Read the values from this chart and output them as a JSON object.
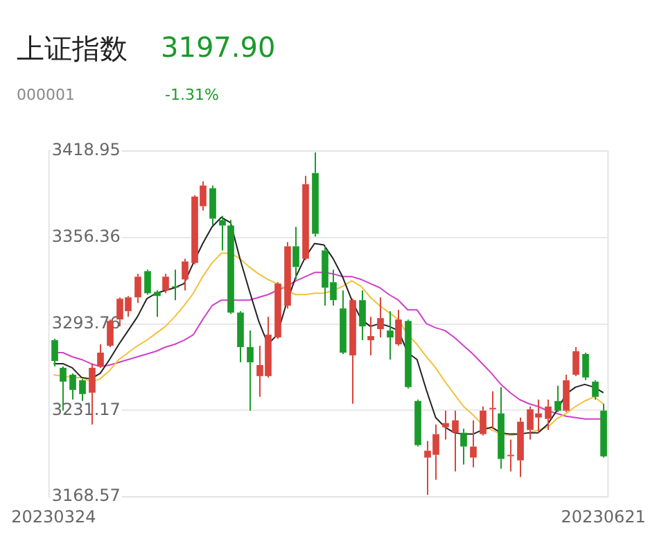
{
  "chart_data": {
    "type": "candlestick",
    "title": "上证指数",
    "subtitle": "000001",
    "annotations": [
      "3197.90",
      "-1.31%"
    ],
    "categories": [
      "20230324",
      null,
      null,
      null,
      null,
      null,
      null,
      null,
      null,
      null,
      null,
      null,
      null,
      null,
      null,
      null,
      null,
      null,
      null,
      null,
      null,
      null,
      null,
      null,
      null,
      null,
      null,
      null,
      null,
      null,
      null,
      null,
      null,
      null,
      null,
      null,
      null,
      null,
      null,
      null,
      null,
      null,
      null,
      null,
      null,
      null,
      null,
      null,
      null,
      null,
      null,
      null,
      null,
      null,
      null,
      null,
      null,
      null,
      null,
      "20230621"
    ],
    "ohlc": [
      [
        3282,
        3283,
        3263,
        3267
      ],
      [
        3262,
        3263,
        3231,
        3252
      ],
      [
        3257,
        3258,
        3239,
        3246
      ],
      [
        3253,
        3254,
        3238,
        3243
      ],
      [
        3244,
        3265,
        3221,
        3262
      ],
      [
        3263,
        3279,
        3262,
        3273
      ],
      [
        3278,
        3297,
        3277,
        3296
      ],
      [
        3297,
        3313,
        3292,
        3312
      ],
      [
        3303,
        3314,
        3299,
        3313
      ],
      [
        3313,
        3330,
        3309,
        3328
      ],
      [
        3332,
        3333,
        3315,
        3316
      ],
      [
        3317,
        3318,
        3299,
        3314
      ],
      [
        3318,
        3330,
        3316,
        3328
      ],
      [
        3321,
        3333,
        3311,
        3320
      ],
      [
        3326,
        3341,
        3318,
        3339
      ],
      [
        3338,
        3387,
        3337,
        3386
      ],
      [
        3379,
        3397,
        3376,
        3394
      ],
      [
        3392,
        3394,
        3365,
        3370
      ],
      [
        3369,
        3372,
        3347,
        3365
      ],
      [
        3365,
        3369,
        3301,
        3302
      ],
      [
        3302,
        3303,
        3266,
        3277
      ],
      [
        3277,
        3289,
        3231,
        3266
      ],
      [
        3256,
        3278,
        3241,
        3264
      ],
      [
        3256,
        3299,
        3255,
        3286
      ],
      [
        3284,
        3324,
        3283,
        3323
      ],
      [
        3307,
        3353,
        3305,
        3350
      ],
      [
        3350,
        3364,
        3326,
        3335
      ],
      [
        3341,
        3401,
        3340,
        3395
      ],
      [
        3403,
        3418,
        3357,
        3359
      ],
      [
        3347,
        3350,
        3307,
        3320
      ],
      [
        3324,
        3333,
        3307,
        3311
      ],
      [
        3305,
        3318,
        3272,
        3273
      ],
      [
        3271,
        3312,
        3236,
        3311
      ],
      [
        3311,
        3318,
        3282,
        3292
      ],
      [
        3282,
        3299,
        3271,
        3285
      ],
      [
        3290,
        3313,
        3284,
        3298
      ],
      [
        3289,
        3303,
        3268,
        3284
      ],
      [
        3279,
        3304,
        3278,
        3297
      ],
      [
        3296,
        3297,
        3247,
        3248
      ],
      [
        3238,
        3239,
        3205,
        3206
      ],
      [
        3197,
        3209,
        3170,
        3202
      ],
      [
        3199,
        3221,
        3181,
        3214
      ],
      [
        3219,
        3231,
        3210,
        3222
      ],
      [
        3215,
        3231,
        3187,
        3224
      ],
      [
        3215,
        3218,
        3192,
        3205
      ],
      [
        3197,
        3224,
        3190,
        3205
      ],
      [
        3214,
        3234,
        3213,
        3231
      ],
      [
        3232,
        3245,
        3218,
        3233
      ],
      [
        3229,
        3248,
        3189,
        3196
      ],
      [
        3198,
        3210,
        3187,
        3199
      ],
      [
        3195,
        3226,
        3183,
        3223
      ],
      [
        3217,
        3234,
        3210,
        3232
      ],
      [
        3226,
        3239,
        3215,
        3229
      ],
      [
        3225,
        3239,
        3217,
        3234
      ],
      [
        3238,
        3249,
        3230,
        3231
      ],
      [
        3231,
        3257,
        3230,
        3253
      ],
      [
        3257,
        3277,
        3256,
        3274
      ],
      [
        3272,
        3273,
        3253,
        3255
      ],
      [
        3252,
        3253,
        3239,
        3241
      ],
      [
        3231,
        3236,
        3197,
        3197.9
      ]
    ],
    "colors": [
      "#1a9a2a",
      "#1a9a2a",
      "#1a9a2a",
      "#1a9a2a",
      "#d9443c",
      "#d9443c",
      "#d9443c",
      "#d9443c",
      "#d9443c",
      "#d9443c",
      "#1a9a2a",
      "#1a9a2a",
      "#d9443c",
      "#1a9a2a",
      "#d9443c",
      "#d9443c",
      "#d9443c",
      "#1a9a2a",
      "#1a9a2a",
      "#1a9a2a",
      "#1a9a2a",
      "#1a9a2a",
      "#d9443c",
      "#d9443c",
      "#d9443c",
      "#d9443c",
      "#1a9a2a",
      "#d9443c",
      "#1a9a2a",
      "#1a9a2a",
      "#1a9a2a",
      "#1a9a2a",
      "#d9443c",
      "#1a9a2a",
      "#d9443c",
      "#d9443c",
      "#1a9a2a",
      "#d9443c",
      "#1a9a2a",
      "#1a9a2a",
      "#d9443c",
      "#d9443c",
      "#d9443c",
      "#d9443c",
      "#1a9a2a",
      "#d9443c",
      "#d9443c",
      "#d9443c",
      "#1a9a2a",
      "#d9443c",
      "#d9443c",
      "#d9443c",
      "#d9443c",
      "#d9443c",
      "#1a9a2a",
      "#d9443c",
      "#d9443c",
      "#1a9a2a",
      "#1a9a2a",
      "#1a9a2a"
    ],
    "series": [
      {
        "type": "line",
        "color": "#222222",
        "values": [
          3265,
          3265,
          3262,
          3255,
          3254,
          3258,
          3268,
          3279,
          3289,
          3299,
          3312,
          3316,
          3318,
          3320,
          3323,
          3338,
          3352,
          3364,
          3371,
          3367,
          3341,
          3318,
          3296,
          3279,
          3286,
          3309,
          3328,
          3342,
          3352,
          3351,
          3341,
          3328,
          3311,
          3297,
          3292,
          3294,
          3292,
          3289,
          3273,
          3268,
          3246,
          3226,
          3219,
          3215,
          3214,
          3214,
          3217,
          3219,
          3215,
          3214,
          3214,
          3215,
          3215,
          3221,
          3231,
          3243,
          3248,
          3250,
          3248,
          3244
        ]
      },
      {
        "type": "line",
        "color": "#f0c23c",
        "values": [
          3257,
          3256,
          3255,
          3255,
          3252,
          3254,
          3260,
          3268,
          3273,
          3278,
          3282,
          3287,
          3292,
          3299,
          3307,
          3316,
          3328,
          3338,
          3345,
          3345,
          3341,
          3335,
          3330,
          3326,
          3323,
          3318,
          3315,
          3315,
          3316,
          3316,
          3318,
          3321,
          3325,
          3321,
          3313,
          3307,
          3302,
          3297,
          3286,
          3279,
          3270,
          3262,
          3252,
          3243,
          3234,
          3228,
          3221,
          3217,
          3214,
          3213,
          3214,
          3215,
          3217,
          3219,
          3225,
          3229,
          3234,
          3238,
          3241,
          3236
        ]
      },
      {
        "type": "line",
        "color": "#d040c8",
        "values": [
          3273,
          3273,
          3270,
          3268,
          3265,
          3263,
          3264,
          3266,
          3268,
          3270,
          3272,
          3274,
          3277,
          3279,
          3282,
          3286,
          3297,
          3307,
          3311,
          3311,
          3311,
          3311,
          3313,
          3315,
          3318,
          3321,
          3325,
          3328,
          3331,
          3331,
          3330,
          3328,
          3328,
          3326,
          3323,
          3320,
          3315,
          3311,
          3304,
          3304,
          3294,
          3291,
          3289,
          3284,
          3278,
          3272,
          3265,
          3258,
          3250,
          3244,
          3239,
          3236,
          3234,
          3231,
          3229,
          3227,
          3226,
          3225,
          3225,
          3225
        ]
      }
    ],
    "ylim": [
      3168.57,
      3418.95
    ],
    "yticks": [
      3168.57,
      3231.17,
      3293.76,
      3356.36,
      3418.95
    ],
    "grid": "y",
    "legend": false,
    "marker": "none"
  }
}
